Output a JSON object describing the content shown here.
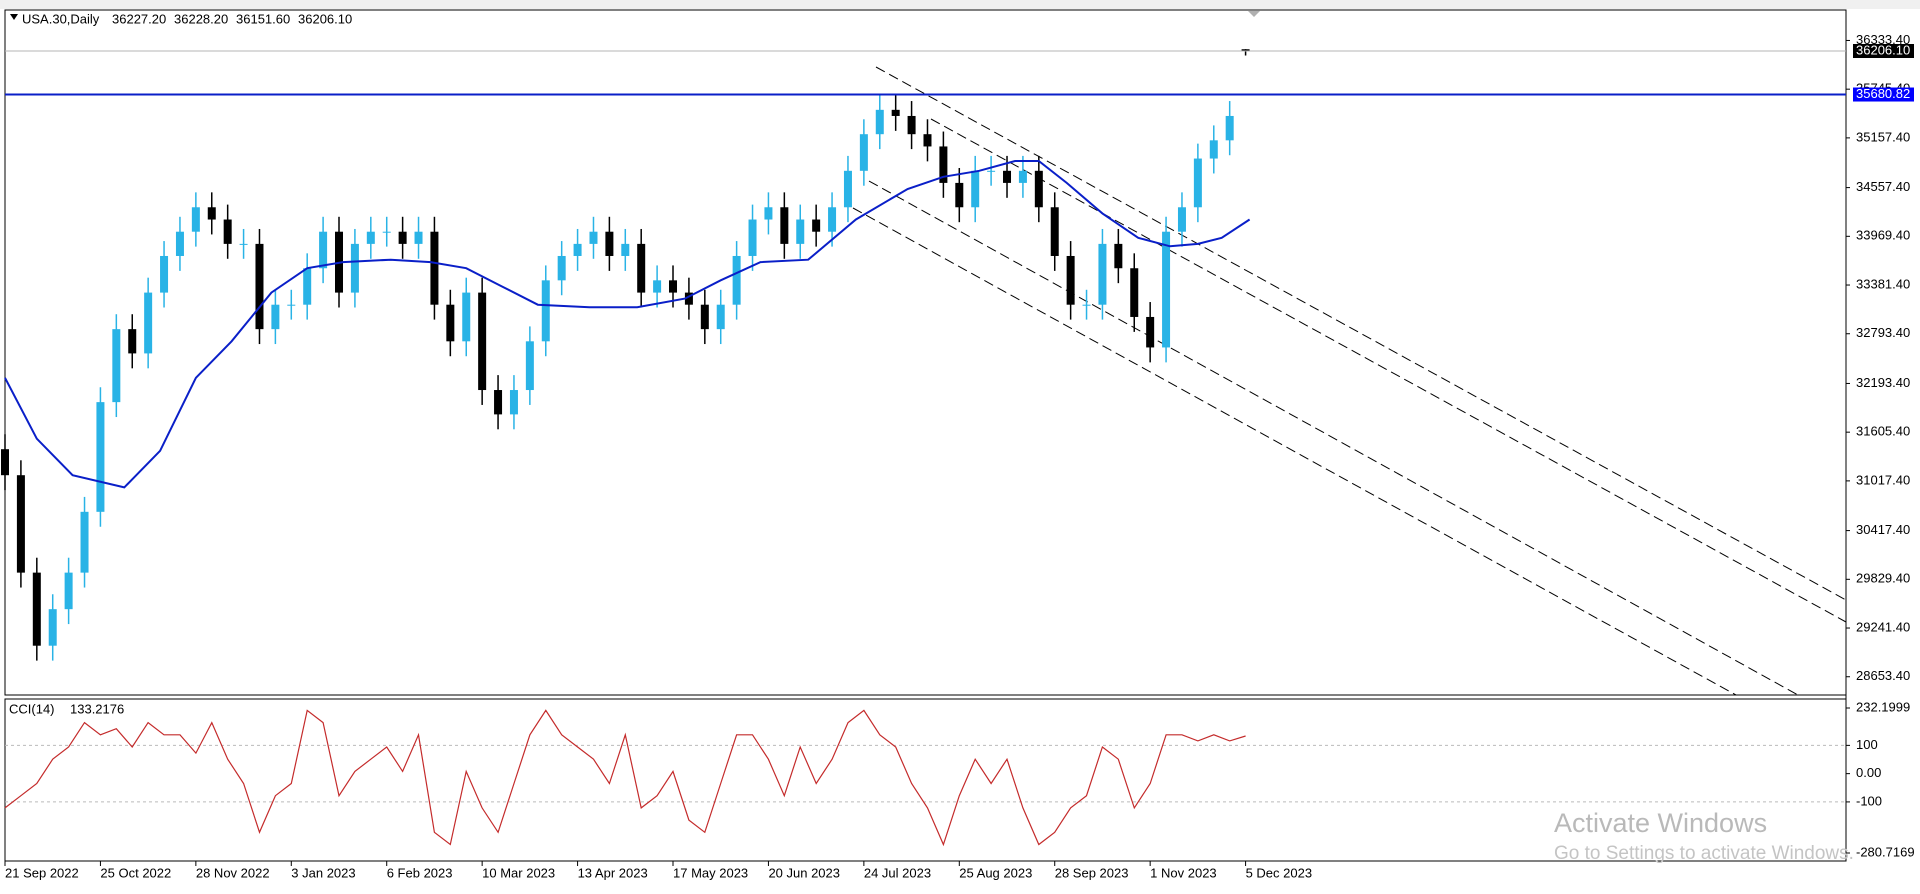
{
  "chart_data": [
    {
      "type": "candlestick",
      "symbol": "USA.30,Daily",
      "header_ohlc": [
        {
          "value": 36227.2,
          "label": "36227.20"
        },
        {
          "value": 36228.2,
          "label": "36228.20"
        },
        {
          "value": 36151.6,
          "label": "36151.60"
        },
        {
          "value": 36206.1,
          "label": "36206.10"
        }
      ],
      "x": [
        0,
        4,
        8,
        12,
        16,
        20,
        24,
        28,
        32,
        36,
        40,
        44,
        48,
        52,
        56,
        60,
        64,
        68,
        72,
        76,
        80,
        84,
        88,
        92,
        96,
        100,
        104,
        108,
        112,
        116,
        120,
        124,
        128,
        132,
        136,
        140,
        144,
        148,
        152,
        156,
        160,
        164,
        168,
        172,
        176,
        180,
        184,
        188,
        192,
        196,
        200,
        204,
        208,
        212,
        216,
        220,
        224,
        228,
        232,
        236,
        240,
        244,
        248,
        252,
        256,
        260,
        264,
        268,
        272,
        276,
        280,
        284,
        288,
        292,
        296,
        300,
        304,
        308,
        312
      ],
      "open": [
        31400,
        31086,
        29910,
        29028,
        29469,
        29910,
        30644,
        31968,
        32849,
        32556,
        33290,
        33732,
        34025,
        34320,
        34172,
        33878,
        33878,
        32849,
        33144,
        33144,
        33584,
        34025,
        33290,
        33878,
        34025,
        34025,
        33878,
        34025,
        33144,
        32702,
        33290,
        32114,
        31820,
        32114,
        32702,
        33438,
        33732,
        33878,
        34025,
        33732,
        33878,
        33290,
        33438,
        33290,
        33144,
        32849,
        33144,
        33732,
        34172,
        34320,
        33878,
        34172,
        34025,
        34320,
        34760,
        35202,
        35496,
        35422,
        35202,
        35054,
        34614,
        34320,
        34760,
        34760,
        34614,
        34760,
        34320,
        33732,
        33144,
        33144,
        33878,
        33584,
        32996,
        32628,
        34025,
        34320,
        34908,
        35128,
        36227.2
      ],
      "high": [
        31580,
        31266,
        30090,
        29649,
        30090,
        30824,
        32148,
        33029,
        33029,
        33470,
        33912,
        34205,
        34500,
        34500,
        34352,
        34058,
        34058,
        33324,
        33324,
        33764,
        34205,
        34205,
        34058,
        34205,
        34205,
        34205,
        34205,
        34205,
        33324,
        33470,
        33470,
        32294,
        32294,
        32882,
        33618,
        33912,
        34058,
        34205,
        34205,
        34058,
        34058,
        33618,
        33618,
        33470,
        33324,
        33324,
        33912,
        34352,
        34500,
        34500,
        34352,
        34352,
        34500,
        34940,
        35382,
        35676,
        35676,
        35602,
        35382,
        35234,
        34794,
        34940,
        34940,
        34940,
        34940,
        34940,
        34500,
        33912,
        33324,
        34058,
        34058,
        33764,
        33176,
        34205,
        34500,
        35088,
        35308,
        35602,
        36228.2
      ],
      "low": [
        30906,
        29730,
        28848,
        28848,
        29289,
        29730,
        30464,
        31788,
        32376,
        32376,
        33110,
        33552,
        33845,
        33992,
        33698,
        33698,
        32669,
        32669,
        32964,
        32964,
        33404,
        33110,
        33110,
        33698,
        33845,
        33698,
        33698,
        32964,
        32522,
        32522,
        31934,
        31640,
        31640,
        31934,
        32522,
        33258,
        33552,
        33698,
        33552,
        33552,
        33110,
        33110,
        33110,
        32964,
        32669,
        32669,
        32964,
        33552,
        33992,
        33698,
        33698,
        33845,
        33845,
        34140,
        34580,
        35022,
        35242,
        35022,
        34874,
        34434,
        34140,
        34140,
        34580,
        34434,
        34434,
        34140,
        33552,
        32964,
        32964,
        32964,
        33404,
        32816,
        32448,
        32448,
        33845,
        34140,
        34728,
        34948,
        36151.6
      ],
      "close": [
        31086,
        29910,
        29028,
        29469,
        29910,
        30644,
        31968,
        32849,
        32556,
        33290,
        33732,
        34025,
        34320,
        34172,
        33878,
        33878,
        32849,
        33144,
        33144,
        33584,
        34025,
        33290,
        33878,
        34025,
        34025,
        33878,
        34025,
        33144,
        32702,
        33290,
        32114,
        31820,
        32114,
        32702,
        33438,
        33732,
        33878,
        34025,
        33732,
        33878,
        33290,
        33438,
        33290,
        33144,
        32849,
        33144,
        33732,
        34172,
        34320,
        33878,
        34172,
        34025,
        34320,
        34760,
        35202,
        35496,
        35422,
        35202,
        35054,
        34614,
        34320,
        34760,
        34760,
        34614,
        34760,
        34320,
        33732,
        33144,
        33144,
        33878,
        33584,
        32996,
        32628,
        34025,
        34320,
        34908,
        35128,
        35422,
        36206.1
      ],
      "up_color": "#29b3e6",
      "down_color": "#000000",
      "xlim": [
        0,
        463
      ],
      "xticks": [
        {
          "value": 0,
          "label": "21 Sep 2022"
        },
        {
          "value": 24,
          "label": "25 Oct 2022"
        },
        {
          "value": 48,
          "label": "28 Nov 2022"
        },
        {
          "value": 72,
          "label": "3 Jan 2023"
        },
        {
          "value": 96,
          "label": "6 Feb 2023"
        },
        {
          "value": 120,
          "label": "10 Mar 2023"
        },
        {
          "value": 144,
          "label": "13 Apr 2023"
        },
        {
          "value": 168,
          "label": "17 May 2023"
        },
        {
          "value": 192,
          "label": "20 Jun 2023"
        },
        {
          "value": 216,
          "label": "24 Jul 2023"
        },
        {
          "value": 240,
          "label": "25 Aug 2023"
        },
        {
          "value": 264,
          "label": "28 Sep 2023"
        },
        {
          "value": 288,
          "label": "1 Nov 2023"
        },
        {
          "value": 312,
          "label": "5 Dec 2023"
        }
      ],
      "ylim": [
        28433,
        36701
      ],
      "yticks": [
        {
          "value": 36333.4,
          "label": "36333.40"
        },
        {
          "value": 35745.4,
          "label": "35745.40"
        },
        {
          "value": 35157.4,
          "label": "35157.40"
        },
        {
          "value": 34557.4,
          "label": "34557.40"
        },
        {
          "value": 33969.4,
          "label": "33969.40"
        },
        {
          "value": 33381.4,
          "label": "33381.40"
        },
        {
          "value": 32793.4,
          "label": "32793.40"
        },
        {
          "value": 32193.4,
          "label": "32193.40"
        },
        {
          "value": 31605.4,
          "label": "31605.40"
        },
        {
          "value": 31017.4,
          "label": "31017.40"
        },
        {
          "value": 30417.4,
          "label": "30417.40"
        },
        {
          "value": 29829.4,
          "label": "29829.40"
        },
        {
          "value": 29241.4,
          "label": "29241.40"
        },
        {
          "value": 28653.4,
          "label": "28653.40"
        }
      ],
      "moving_average": {
        "color": "#0a1fc8",
        "x": [
          0,
          8,
          17,
          30,
          39,
          48,
          57,
          67,
          76,
          85,
          97,
          107,
          116,
          125,
          134,
          147,
          159,
          171,
          180,
          190,
          202,
          214,
          227,
          236,
          245,
          254,
          260,
          267,
          276,
          285,
          293,
          300,
          306,
          313
        ],
        "values": [
          32262,
          31526,
          31086,
          30939,
          31380,
          32262,
          32702,
          33290,
          33584,
          33658,
          33687,
          33658,
          33584,
          33364,
          33144,
          33114,
          33114,
          33217,
          33438,
          33658,
          33687,
          34172,
          34540,
          34688,
          34760,
          34878,
          34878,
          34614,
          34246,
          33952,
          33849,
          33878,
          33952,
          34172
        ]
      },
      "price_lines": [
        {
          "value": 36206.1,
          "label": "36206.10",
          "line_color": "#b4b4b4",
          "box_color": "#000000"
        },
        {
          "value": 35680.82,
          "label": "35680.82",
          "line_color": "#0a1fc8",
          "box_color": "#0000ff"
        }
      ]
    },
    {
      "type": "line",
      "title": "CCI(14)",
      "last_value_label": "133.2176",
      "color": "#c42b2b",
      "x": [
        0,
        4,
        8,
        12,
        16,
        20,
        24,
        28,
        32,
        36,
        40,
        44,
        48,
        52,
        56,
        60,
        64,
        68,
        72,
        76,
        80,
        84,
        88,
        92,
        96,
        100,
        104,
        108,
        112,
        116,
        120,
        124,
        128,
        132,
        136,
        140,
        144,
        148,
        152,
        156,
        160,
        164,
        168,
        172,
        176,
        180,
        184,
        188,
        192,
        196,
        200,
        204,
        208,
        212,
        216,
        220,
        224,
        228,
        232,
        236,
        240,
        244,
        248,
        252,
        256,
        260,
        264,
        268,
        272,
        276,
        280,
        284,
        288,
        292,
        296,
        300,
        304,
        308,
        312
      ],
      "values": [
        -121.2,
        -78.1,
        -35,
        51.2,
        94.3,
        180.5,
        137.4,
        158.9,
        94.3,
        180.5,
        137.4,
        137.4,
        72.7,
        180.5,
        51.2,
        -35,
        -207.4,
        -78.1,
        -35,
        223.6,
        180.5,
        -78.1,
        8.1,
        51.2,
        94.3,
        8.1,
        137.4,
        -207.4,
        -250.5,
        8.1,
        -121.2,
        -207.4,
        -35,
        137.4,
        223.6,
        137.4,
        94.3,
        51.2,
        -35,
        137.4,
        -121.2,
        -78.1,
        8.1,
        -164.3,
        -207.4,
        -35,
        137.4,
        137.4,
        51.2,
        -78.1,
        94.3,
        -35,
        51.2,
        180.5,
        223.6,
        137.4,
        94.3,
        -35,
        -121.2,
        -250.5,
        -78.1,
        51.2,
        -35,
        51.2,
        -121.2,
        -250.5,
        -207.4,
        -121.2,
        -78.1,
        94.3,
        51.2,
        -121.2,
        -35,
        137.4,
        137.4,
        115.8,
        137.4,
        115.8,
        133.2176
      ],
      "xlim": [
        0,
        463
      ],
      "ylim": [
        -280.7169,
        232.1999
      ],
      "yticks": [
        {
          "value": 232.1999,
          "label": "232.1999"
        },
        100,
        {
          "value": 0,
          "label": "0.00"
        },
        -100,
        {
          "value": -280.7169,
          "label": "-280.7169"
        }
      ],
      "level_lines": [
        100,
        -100
      ]
    }
  ],
  "watermark": {
    "title": "Activate Windows",
    "subtitle": "Go to Settings to activate Windows."
  }
}
